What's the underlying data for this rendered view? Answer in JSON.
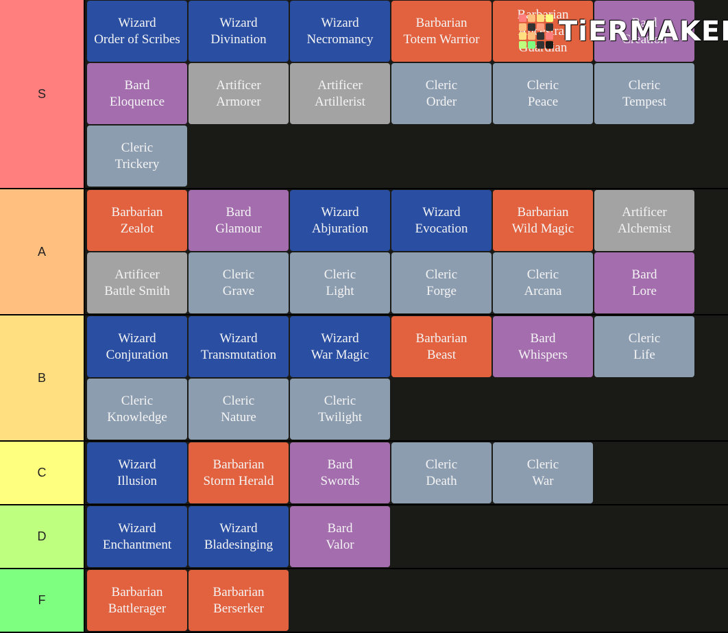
{
  "colors": {
    "wizard": "#2a4fa2",
    "barbarian": "#e2613e",
    "bard": "#a36dae",
    "artificer": "#a3a3a3",
    "cleric": "#8d9db0"
  },
  "logo": {
    "text": "TiERMAKER",
    "grid_colors": [
      "#ff7f7f",
      "#ffbf7f",
      "#ffdf7f",
      "#ffff7f",
      "#ffbf7f",
      "#333333",
      "#ff9f7f",
      "#333333",
      "#ffdf7f",
      "#ffbf7f",
      "#333333",
      "#ff7f7f",
      "#bfff7f",
      "#7fff7f",
      "#333333",
      "#1a1a17"
    ]
  },
  "tiers": [
    {
      "label": "S",
      "color": "#ff7f7f",
      "items": [
        {
          "line1": "Wizard",
          "line2": "Order of Scribes",
          "class": "wizard"
        },
        {
          "line1": "Wizard",
          "line2": "Divination",
          "class": "wizard"
        },
        {
          "line1": "Wizard",
          "line2": "Necromancy",
          "class": "wizard"
        },
        {
          "line1": "Barbarian",
          "line2": "Totem Warrior",
          "class": "barbarian"
        },
        {
          "line1": "Barbarian",
          "line2": "Ancestral",
          "line3": "Guardian",
          "class": "barbarian"
        },
        {
          "line1": "Bard",
          "line2": "Creation",
          "class": "bard"
        },
        {
          "line1": "Bard",
          "line2": "Eloquence",
          "class": "bard"
        },
        {
          "line1": "Artificer",
          "line2": "Armorer",
          "class": "artificer"
        },
        {
          "line1": "Artificer",
          "line2": "Artillerist",
          "class": "artificer"
        },
        {
          "line1": "Cleric",
          "line2": "Order",
          "class": "cleric"
        },
        {
          "line1": "Cleric",
          "line2": "Peace",
          "class": "cleric"
        },
        {
          "line1": "Cleric",
          "line2": "Tempest",
          "class": "cleric"
        },
        {
          "line1": "Cleric",
          "line2": "Trickery",
          "class": "cleric"
        }
      ]
    },
    {
      "label": "A",
      "color": "#ffbf7f",
      "items": [
        {
          "line1": "Barbarian",
          "line2": "Zealot",
          "class": "barbarian"
        },
        {
          "line1": "Bard",
          "line2": "Glamour",
          "class": "bard"
        },
        {
          "line1": "Wizard",
          "line2": "Abjuration",
          "class": "wizard"
        },
        {
          "line1": "Wizard",
          "line2": "Evocation",
          "class": "wizard"
        },
        {
          "line1": "Barbarian",
          "line2": "Wild Magic",
          "class": "barbarian"
        },
        {
          "line1": "Artificer",
          "line2": "Alchemist",
          "class": "artificer"
        },
        {
          "line1": "Artificer",
          "line2": "Battle Smith",
          "class": "artificer"
        },
        {
          "line1": "Cleric",
          "line2": "Grave",
          "class": "cleric"
        },
        {
          "line1": "Cleric",
          "line2": "Light",
          "class": "cleric"
        },
        {
          "line1": "Cleric",
          "line2": "Forge",
          "class": "cleric"
        },
        {
          "line1": "Cleric",
          "line2": "Arcana",
          "class": "cleric"
        },
        {
          "line1": "Bard",
          "line2": "Lore",
          "class": "bard"
        }
      ]
    },
    {
      "label": "B",
      "color": "#ffdf7f",
      "items": [
        {
          "line1": "Wizard",
          "line2": "Conjuration",
          "class": "wizard"
        },
        {
          "line1": "Wizard",
          "line2": "Transmutation",
          "class": "wizard"
        },
        {
          "line1": "Wizard",
          "line2": "War Magic",
          "class": "wizard"
        },
        {
          "line1": "Barbarian",
          "line2": "Beast",
          "class": "barbarian"
        },
        {
          "line1": "Bard",
          "line2": "Whispers",
          "class": "bard"
        },
        {
          "line1": "Cleric",
          "line2": "Life",
          "class": "cleric"
        },
        {
          "line1": "Cleric",
          "line2": "Knowledge",
          "class": "cleric"
        },
        {
          "line1": "Cleric",
          "line2": "Nature",
          "class": "cleric"
        },
        {
          "line1": "Cleric",
          "line2": "Twilight",
          "class": "cleric"
        }
      ]
    },
    {
      "label": "C",
      "color": "#ffff7f",
      "items": [
        {
          "line1": "Wizard",
          "line2": "Illusion",
          "class": "wizard"
        },
        {
          "line1": "Barbarian",
          "line2": "Storm Herald",
          "class": "barbarian"
        },
        {
          "line1": "Bard",
          "line2": "Swords",
          "class": "bard"
        },
        {
          "line1": "Cleric",
          "line2": "Death",
          "class": "cleric"
        },
        {
          "line1": "Cleric",
          "line2": "War",
          "class": "cleric"
        }
      ]
    },
    {
      "label": "D",
      "color": "#bfff7f",
      "items": [
        {
          "line1": "Wizard",
          "line2": "Enchantment",
          "class": "wizard"
        },
        {
          "line1": "Wizard",
          "line2": "Bladesinging",
          "class": "wizard"
        },
        {
          "line1": "Bard",
          "line2": "Valor",
          "class": "bard"
        }
      ]
    },
    {
      "label": "F",
      "color": "#7fff7f",
      "items": [
        {
          "line1": "Barbarian",
          "line2": "Battlerager",
          "class": "barbarian"
        },
        {
          "line1": "Barbarian",
          "line2": "Berserker",
          "class": "barbarian"
        }
      ]
    }
  ]
}
